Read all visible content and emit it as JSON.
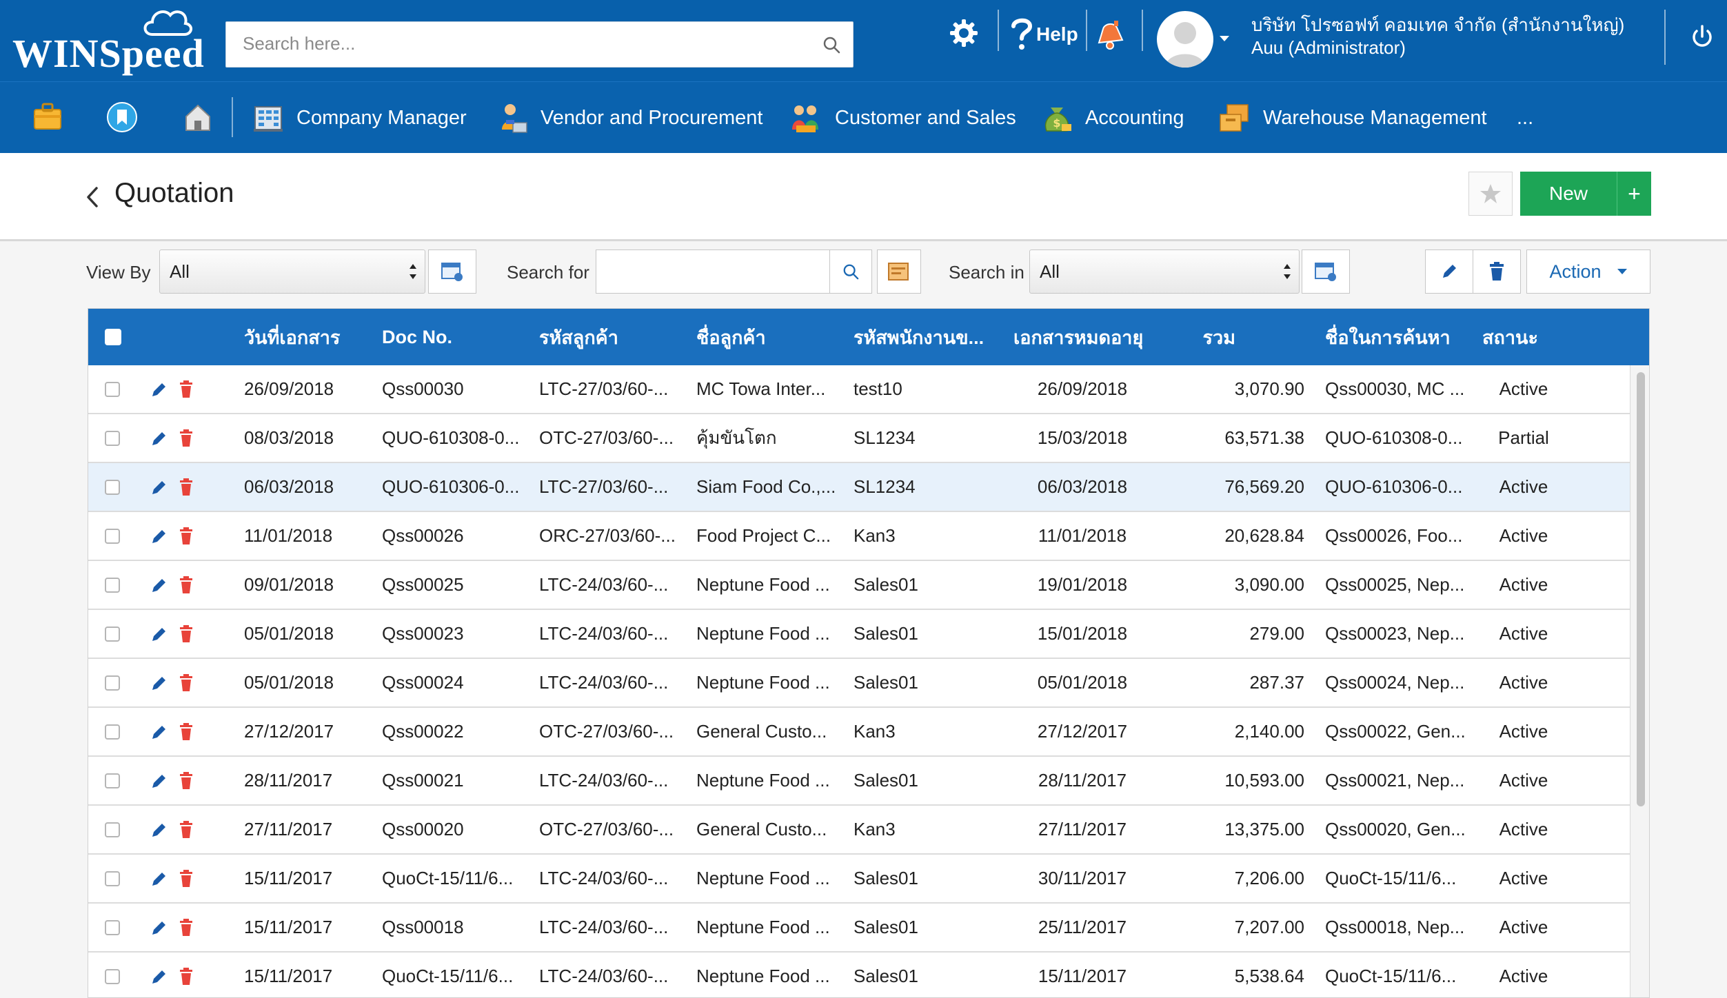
{
  "app": {
    "logo_text": "WINSpeed",
    "search_placeholder": "Search here...",
    "help_label": "Help",
    "company": "บริษัท โปรซอฟท์ คอมเทค จำกัด (สำนักงานใหญ่)",
    "user": "Auu (Administrator)"
  },
  "modules": {
    "items": [
      {
        "label": "Company Manager",
        "icon": "building-icon"
      },
      {
        "label": "Vendor and Procurement",
        "icon": "vendor-person-icon"
      },
      {
        "label": "Customer and Sales",
        "icon": "customers-icon"
      },
      {
        "label": "Accounting",
        "icon": "money-bag-icon"
      },
      {
        "label": "Warehouse Management",
        "icon": "boxes-icon"
      }
    ],
    "more_label": "..."
  },
  "page": {
    "title": "Quotation",
    "new_label": "New",
    "plus_label": "+"
  },
  "filters": {
    "view_by_label": "View By",
    "view_by_value": "All",
    "search_for_label": "Search for",
    "search_for_value": "",
    "search_in_label": "Search in",
    "search_in_value": "All",
    "action_label": "Action"
  },
  "table": {
    "columns": [
      "วันที่เอกสาร",
      "Doc No.",
      "รหัสลูกค้า",
      "ชื่อลูกค้า",
      "รหัสพนักงานข...",
      "เอกสารหมดอายุ",
      "รวม",
      "ชื่อในการค้นหา",
      "สถานะ"
    ],
    "rows": [
      {
        "date": "26/09/2018",
        "doc": "Qss00030",
        "cust_code": "LTC-27/03/60-...",
        "cust_name": "MC Towa Inter...",
        "emp": "test10",
        "expire": "26/09/2018",
        "total": "3,070.90",
        "search_name": "Qss00030, MC ...",
        "status": "Active"
      },
      {
        "date": "08/03/2018",
        "doc": "QUO-610308-0...",
        "cust_code": "OTC-27/03/60-...",
        "cust_name": "คุ้มขันโตก",
        "emp": "SL1234",
        "expire": "15/03/2018",
        "total": "63,571.38",
        "search_name": "QUO-610308-0...",
        "status": "Partial"
      },
      {
        "date": "06/03/2018",
        "doc": "QUO-610306-0...",
        "cust_code": "LTC-27/03/60-...",
        "cust_name": "Siam Food Co.,...",
        "emp": "SL1234",
        "expire": "06/03/2018",
        "total": "76,569.20",
        "search_name": "QUO-610306-0...",
        "status": "Active"
      },
      {
        "date": "11/01/2018",
        "doc": "Qss00026",
        "cust_code": "ORC-27/03/60-...",
        "cust_name": "Food Project C...",
        "emp": "Kan3",
        "expire": "11/01/2018",
        "total": "20,628.84",
        "search_name": "Qss00026, Foo...",
        "status": "Active"
      },
      {
        "date": "09/01/2018",
        "doc": "Qss00025",
        "cust_code": "LTC-24/03/60-...",
        "cust_name": "Neptune Food ...",
        "emp": "Sales01",
        "expire": "19/01/2018",
        "total": "3,090.00",
        "search_name": "Qss00025, Nep...",
        "status": "Active"
      },
      {
        "date": "05/01/2018",
        "doc": "Qss00023",
        "cust_code": "LTC-24/03/60-...",
        "cust_name": "Neptune Food ...",
        "emp": "Sales01",
        "expire": "15/01/2018",
        "total": "279.00",
        "search_name": "Qss00023, Nep...",
        "status": "Active"
      },
      {
        "date": "05/01/2018",
        "doc": "Qss00024",
        "cust_code": "LTC-24/03/60-...",
        "cust_name": "Neptune Food ...",
        "emp": "Sales01",
        "expire": "05/01/2018",
        "total": "287.37",
        "search_name": "Qss00024, Nep...",
        "status": "Active"
      },
      {
        "date": "27/12/2017",
        "doc": "Qss00022",
        "cust_code": "OTC-27/03/60-...",
        "cust_name": "General Custo...",
        "emp": "Kan3",
        "expire": "27/12/2017",
        "total": "2,140.00",
        "search_name": "Qss00022, Gen...",
        "status": "Active"
      },
      {
        "date": "28/11/2017",
        "doc": "Qss00021",
        "cust_code": "LTC-24/03/60-...",
        "cust_name": "Neptune Food ...",
        "emp": "Sales01",
        "expire": "28/11/2017",
        "total": "10,593.00",
        "search_name": "Qss00021, Nep...",
        "status": "Active"
      },
      {
        "date": "27/11/2017",
        "doc": "Qss00020",
        "cust_code": "OTC-27/03/60-...",
        "cust_name": "General Custo...",
        "emp": "Kan3",
        "expire": "27/11/2017",
        "total": "13,375.00",
        "search_name": "Qss00020, Gen...",
        "status": "Active"
      },
      {
        "date": "15/11/2017",
        "doc": "QuoCt-15/11/6...",
        "cust_code": "LTC-24/03/60-...",
        "cust_name": "Neptune Food ...",
        "emp": "Sales01",
        "expire": "30/11/2017",
        "total": "7,206.00",
        "search_name": "QuoCt-15/11/6...",
        "status": "Active"
      },
      {
        "date": "15/11/2017",
        "doc": "Qss00018",
        "cust_code": "LTC-24/03/60-...",
        "cust_name": "Neptune Food ...",
        "emp": "Sales01",
        "expire": "25/11/2017",
        "total": "7,207.00",
        "search_name": "Qss00018, Nep...",
        "status": "Active"
      },
      {
        "date": "15/11/2017",
        "doc": "QuoCt-15/11/6...",
        "cust_code": "LTC-24/03/60-...",
        "cust_name": "Neptune Food ...",
        "emp": "Sales01",
        "expire": "15/11/2017",
        "total": "5,538.64",
        "search_name": "QuoCt-15/11/6...",
        "status": "Active"
      }
    ]
  },
  "colors": {
    "topbar": "#0860ab",
    "header_row": "#1a6fbe",
    "new_button": "#1da556",
    "status_active": "#1da556",
    "status_partial": "#f08a3a",
    "delete_icon": "#e8433a",
    "edit_icon": "#1a5aa8"
  }
}
